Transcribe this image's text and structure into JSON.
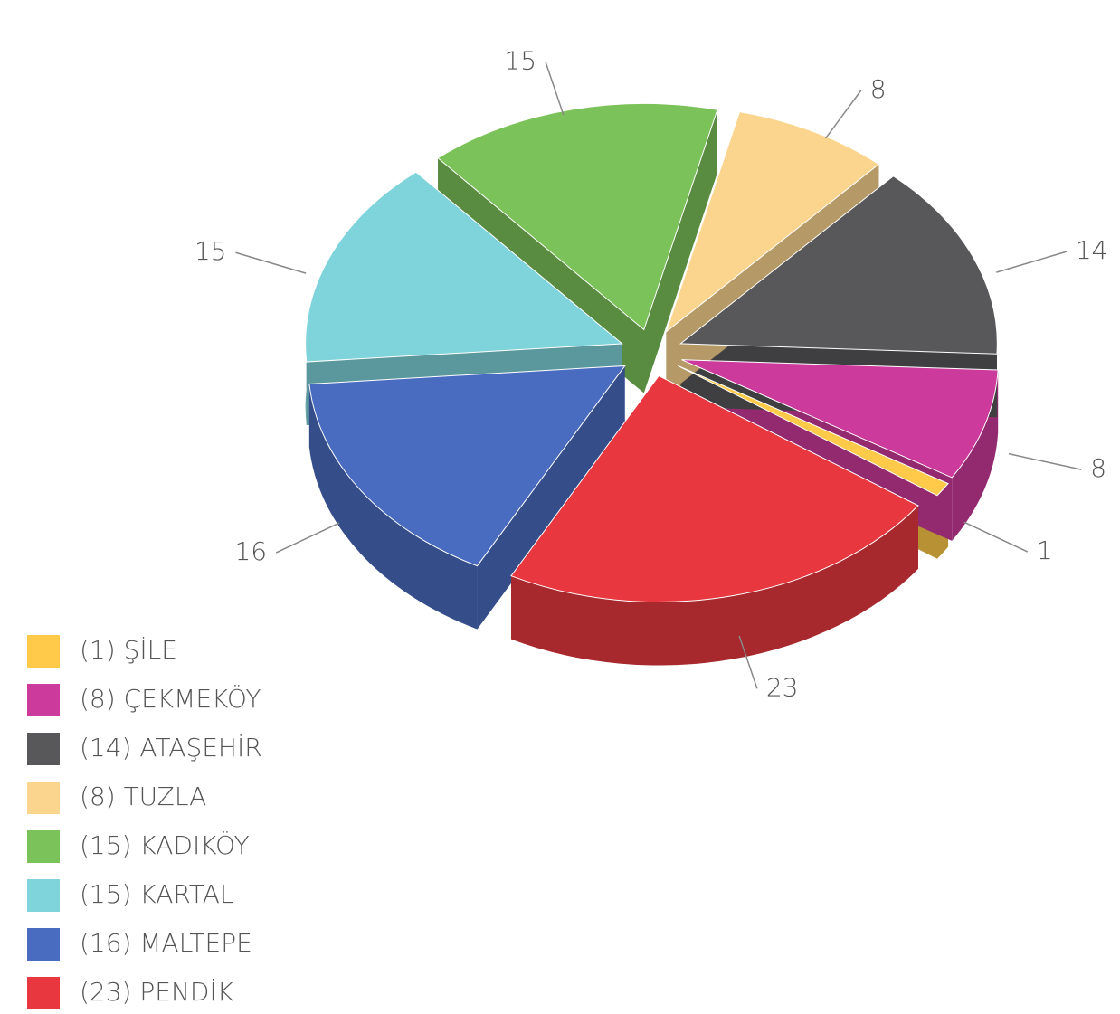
{
  "chart_data": {
    "type": "pie",
    "categories": [
      "(1) ŞİLE",
      "(8) ÇEKMEKÖY",
      "(14) ATAŞEHİR",
      "(8) TUZLA",
      "(15) KADIKÖY",
      "(15) KARTAL",
      "(16) MALTEPE",
      "(23) PENDİK"
    ],
    "values": [
      1,
      8,
      14,
      8,
      15,
      15,
      16,
      23
    ],
    "colors": [
      "#ffc94a",
      "#cc3a9c",
      "#58585a",
      "#fbd58e",
      "#7cc25a",
      "#7fd3da",
      "#4a6cc0",
      "#e8373f"
    ]
  }
}
